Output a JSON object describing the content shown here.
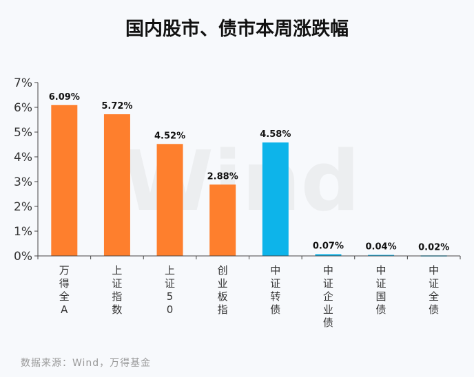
{
  "chart_data": {
    "type": "bar",
    "title": "国内股市、债市本周涨跌幅",
    "categories": [
      "万得全A",
      "上证指数",
      "上证50",
      "创业板指",
      "中证转债",
      "中证企业债",
      "中证国债",
      "中证全债"
    ],
    "values": [
      6.09,
      5.72,
      4.52,
      2.88,
      4.58,
      0.07,
      0.04,
      0.02
    ],
    "data_labels": [
      "6.09%",
      "5.72%",
      "4.52%",
      "2.88%",
      "4.58%",
      "0.07%",
      "0.04%",
      "0.02%"
    ],
    "colors": [
      "#fe7f2d",
      "#fe7f2d",
      "#fe7f2d",
      "#fe7f2d",
      "#0db4ea",
      "#0db4ea",
      "#0db4ea",
      "#0db4ea"
    ],
    "yticks": [
      "0%",
      "1%",
      "2%",
      "3%",
      "4%",
      "5%",
      "6%",
      "7%"
    ],
    "ylim": [
      0,
      7
    ],
    "xlabel": "",
    "ylabel": "",
    "watermark": "Wind"
  },
  "source": "数据来源：Wind，万得基金"
}
